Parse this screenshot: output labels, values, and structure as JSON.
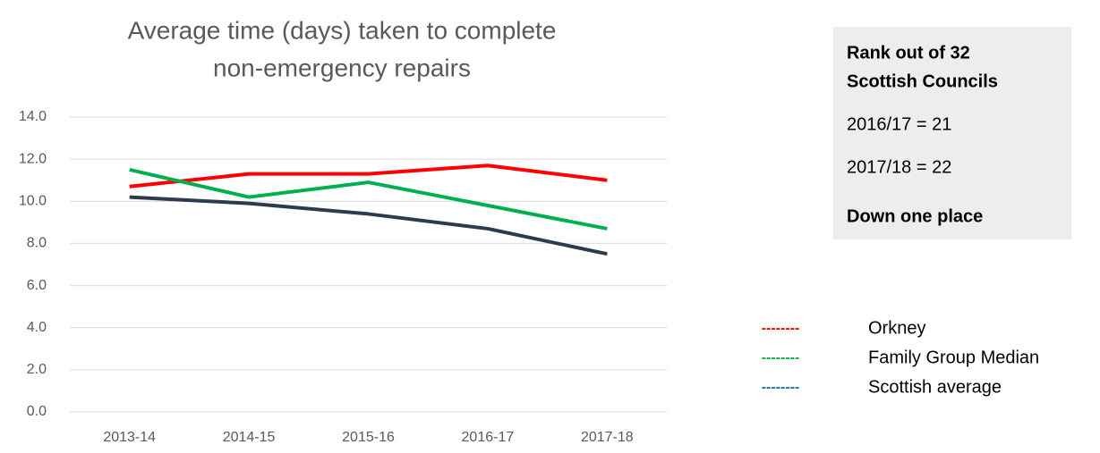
{
  "chart_data": {
    "type": "line",
    "title": [
      "Average time (days) taken to complete",
      "non-emergency repairs"
    ],
    "categories": [
      "2013-14",
      "2014-15",
      "2015-16",
      "2016-17",
      "2017-18"
    ],
    "series": [
      {
        "name": "Orkney",
        "color": "#ff0000",
        "legend_color": "#ff0000",
        "values": [
          10.7,
          11.3,
          11.3,
          11.7,
          11.0
        ]
      },
      {
        "name": "Family Group Median",
        "color": "#00b050",
        "legend_color": "#00b050",
        "values": [
          11.5,
          10.2,
          10.9,
          9.8,
          8.7
        ]
      },
      {
        "name": "Scottish average",
        "color": "#2e3a4f",
        "legend_color": "#1f6fb5",
        "values": [
          10.2,
          9.9,
          9.4,
          8.7,
          7.5
        ]
      }
    ],
    "ylim": [
      0,
      14
    ],
    "yticks": [
      {
        "value": 0,
        "label": "0.0"
      },
      {
        "value": 2,
        "label": "2.0"
      },
      {
        "value": 4,
        "label": "4.0"
      },
      {
        "value": 6,
        "label": "6.0"
      },
      {
        "value": 8,
        "label": "8.0"
      },
      {
        "value": 10,
        "label": "10.0"
      },
      {
        "value": 12,
        "label": "12.0"
      },
      {
        "value": 14,
        "label": "14.0"
      }
    ],
    "grid": true,
    "legend_dash": "--------"
  },
  "panel": {
    "lines": [
      {
        "text": "Rank out of 32",
        "bold": true,
        "color": "#000000"
      },
      {
        "text": "Scottish Councils",
        "bold": true,
        "color": "#000000"
      },
      {
        "text": "2016/17 = 21",
        "bold": false,
        "color": "#000000"
      },
      {
        "text": "2017/18 = 22",
        "bold": false,
        "color": "#000000"
      },
      {
        "text": "Down one place",
        "bold": true,
        "color": "#ff0000"
      }
    ]
  }
}
